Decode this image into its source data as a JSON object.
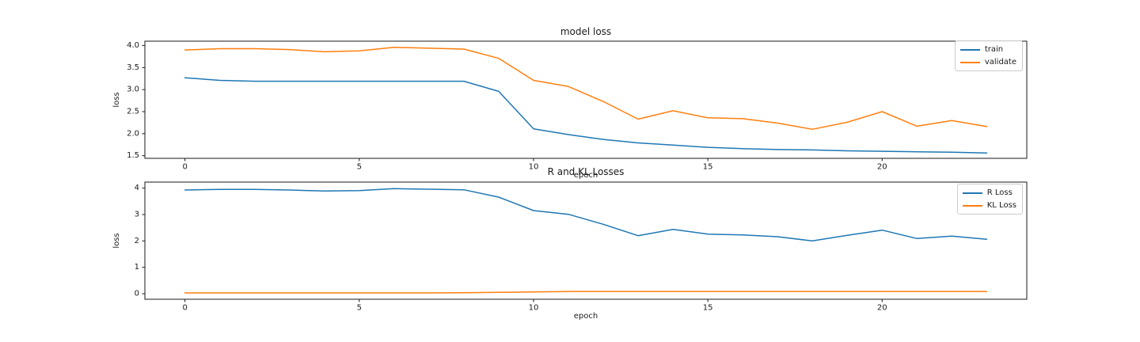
{
  "figure": {
    "background": "#ffffff",
    "text_color": "#1a1a1a",
    "spine_color": "#1a1a1a"
  },
  "chart_data": [
    {
      "type": "line",
      "title": "model loss",
      "xlabel": "epoch",
      "ylabel": "loss",
      "x": [
        0,
        1,
        2,
        3,
        4,
        5,
        6,
        7,
        8,
        9,
        10,
        11,
        12,
        13,
        14,
        15,
        16,
        17,
        18,
        19,
        20,
        21,
        22,
        23
      ],
      "series": [
        {
          "name": "train",
          "color": "#1f77b4",
          "values": [
            3.27,
            3.21,
            3.19,
            3.19,
            3.19,
            3.19,
            3.19,
            3.19,
            3.19,
            2.96,
            2.11,
            1.98,
            1.87,
            1.79,
            1.74,
            1.69,
            1.66,
            1.64,
            1.63,
            1.61,
            1.6,
            1.59,
            1.58,
            1.56
          ]
        },
        {
          "name": "validate",
          "color": "#ff7f0e",
          "values": [
            3.9,
            3.93,
            3.93,
            3.91,
            3.86,
            3.88,
            3.96,
            3.94,
            3.92,
            3.71,
            3.21,
            3.07,
            2.73,
            2.33,
            2.52,
            2.36,
            2.34,
            2.24,
            2.1,
            2.26,
            2.5,
            2.17,
            2.3,
            2.16
          ]
        }
      ],
      "xlim": [
        -1.15,
        24.15
      ],
      "ylim": [
        1.44,
        4.1
      ],
      "xticks": [
        0,
        5,
        10,
        15,
        20
      ],
      "xtick_labels": [
        "0",
        "5",
        "10",
        "15",
        "20"
      ],
      "yticks": [
        1.5,
        2.0,
        2.5,
        3.0,
        3.5,
        4.0
      ],
      "ytick_labels": [
        "1.5",
        "2.0",
        "2.5",
        "3.0",
        "3.5",
        "4.0"
      ],
      "legend_loc": "upper right",
      "grid": false
    },
    {
      "type": "line",
      "title": "R and KL Losses",
      "xlabel": "epoch",
      "ylabel": "loss",
      "x": [
        0,
        1,
        2,
        3,
        4,
        5,
        6,
        7,
        8,
        9,
        10,
        11,
        12,
        13,
        14,
        15,
        16,
        17,
        18,
        19,
        20,
        21,
        22,
        23
      ],
      "series": [
        {
          "name": "R Loss",
          "color": "#1f77b4",
          "values": [
            3.93,
            3.95,
            3.95,
            3.93,
            3.89,
            3.91,
            3.98,
            3.96,
            3.94,
            3.66,
            3.15,
            3.01,
            2.63,
            2.2,
            2.44,
            2.26,
            2.23,
            2.16,
            2.0,
            2.21,
            2.41,
            2.09,
            2.18,
            2.06
          ]
        },
        {
          "name": "KL Loss",
          "color": "#ff7f0e",
          "values": [
            0.03,
            0.03,
            0.03,
            0.03,
            0.03,
            0.03,
            0.03,
            0.03,
            0.04,
            0.05,
            0.07,
            0.08,
            0.08,
            0.08,
            0.08,
            0.08,
            0.08,
            0.08,
            0.08,
            0.08,
            0.08,
            0.08,
            0.08,
            0.08
          ]
        }
      ],
      "xlim": [
        -1.15,
        24.15
      ],
      "ylim": [
        -0.21,
        4.23
      ],
      "xticks": [
        0,
        5,
        10,
        15,
        20
      ],
      "xtick_labels": [
        "0",
        "5",
        "10",
        "15",
        "20"
      ],
      "yticks": [
        0,
        1,
        2,
        3,
        4
      ],
      "ytick_labels": [
        "0",
        "1",
        "2",
        "3",
        "4"
      ],
      "legend_loc": "upper right",
      "grid": false
    }
  ]
}
